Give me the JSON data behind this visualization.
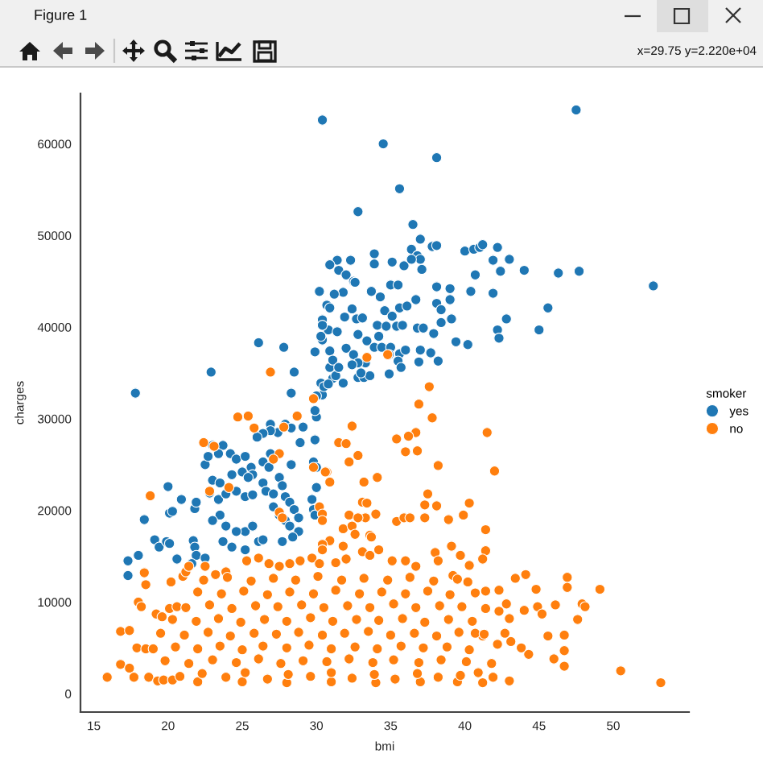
{
  "chart_data": {
    "type": "scatter",
    "xlabel": "bmi",
    "ylabel": "charges",
    "legend_title": "smoker",
    "legend": "right",
    "marker": "circle",
    "grid": false,
    "xlim": [
      14.1,
      55.1
    ],
    "ylim": [
      -2000,
      65500
    ],
    "xticks": [
      15,
      20,
      25,
      30,
      35,
      40,
      45,
      50
    ],
    "yticks": [
      0,
      10000,
      20000,
      30000,
      40000,
      50000,
      60000
    ],
    "annotations": [
      "Figure 1",
      "x=29.75 y=2.220e+04"
    ],
    "series": [
      {
        "name": "yes",
        "color": "#1f77b4",
        "x": [
          30.4,
          47.5,
          34.5,
          32.8,
          38.1,
          35.6,
          17.8,
          22.9,
          26.1,
          27.8,
          28.5,
          28.3,
          36.5,
          37.0,
          37.8,
          38.1,
          36.4,
          33.9,
          40.0,
          40.6,
          41.0,
          41.2,
          42.2,
          36.8,
          37.0,
          43.0,
          41.9,
          31.4,
          30.9,
          32.3,
          33.9,
          35.1,
          35.9,
          36.4,
          37.1,
          44.0,
          46.3,
          47.7,
          42.4,
          40.7,
          52.7,
          31.5,
          32.0,
          32.5,
          35.0,
          35.5,
          38.1,
          39.0,
          33.7,
          34.3,
          31.8,
          31.2,
          40.4,
          41.9,
          38.1,
          39.0,
          30.7,
          30.9,
          32.4,
          35.6,
          36.1,
          36.7,
          45.6,
          38.4,
          34.6,
          35.1,
          42.8,
          39.1,
          38.4,
          45.0,
          42.2,
          42.3,
          39.4,
          40.2,
          30.4,
          30.8,
          31.4,
          31.9,
          32.7,
          33.1,
          34.1,
          34.7,
          35.4,
          35.8,
          32.8,
          33.4,
          34.2,
          36.8,
          37.2,
          37.9,
          30.9,
          30.4,
          32.0,
          32.5,
          33.3,
          32.8,
          33.9,
          34.4,
          35.0,
          35.6,
          36.0,
          37.0,
          37.7,
          38.2,
          35.5,
          34.9,
          35.7,
          34.9,
          36.9,
          32.8,
          33.2,
          33.6,
          30.9,
          31.1,
          31.8,
          31.3,
          30.4,
          30.2,
          32.6,
          30.4,
          29.9,
          30.3,
          31.1,
          31.5,
          30.3,
          30.5,
          30.8,
          30.0,
          32.4,
          33.0,
          30.0,
          29.9,
          29.9,
          29.8,
          30.0,
          30.0,
          29.7,
          29.8,
          29.9,
          26.9,
          27.9,
          27.4,
          26.9,
          26.4,
          26.0,
          28.3,
          29.1,
          28.9,
          28.3,
          26.9,
          26.4,
          26.8,
          22.5,
          22.7,
          23.0,
          23.7,
          23.4,
          24.2,
          24.6,
          25.2,
          25.6,
          25.7,
          23.0,
          23.5,
          24.3,
          25.0,
          25.4,
          22.8,
          23.4,
          23.9,
          24.6,
          25.2,
          25.7,
          26.4,
          26.6,
          27.1,
          27.5,
          27.7,
          27.9,
          28.2,
          28.5,
          28.8,
          27.1,
          27.5,
          27.9,
          28.2,
          28.8,
          28.4,
          27.7,
          26.1,
          26.4,
          25.2,
          25.7,
          24.6,
          23.5,
          23.0,
          23.9,
          23.7,
          24.3,
          25.2,
          21.7,
          21.8,
          21.9,
          21.6,
          22.5,
          20.0,
          20.1,
          20.3,
          20.9,
          18.4,
          19.1,
          19.4,
          19.9,
          20.1,
          20.6,
          18.0,
          17.3,
          17.3,
          21.8,
          21.9
        ],
        "values": [
          62600,
          63700,
          60000,
          52600,
          58500,
          55100,
          32800,
          35100,
          38300,
          37800,
          35100,
          32800,
          51200,
          49600,
          48800,
          48900,
          48500,
          48000,
          48300,
          48500,
          48700,
          49000,
          48700,
          47800,
          47400,
          47400,
          47300,
          47300,
          46800,
          47300,
          46900,
          47100,
          46700,
          47400,
          46300,
          46200,
          45900,
          46100,
          46100,
          45700,
          44500,
          46200,
          45700,
          45000,
          44600,
          44600,
          44400,
          44200,
          43900,
          43300,
          43800,
          43600,
          43900,
          43700,
          42600,
          43000,
          42400,
          42100,
          42000,
          42100,
          42300,
          43000,
          42100,
          41900,
          41800,
          41200,
          40900,
          40900,
          40500,
          39700,
          39700,
          38800,
          38400,
          38100,
          40800,
          39700,
          39500,
          41100,
          40900,
          41000,
          40200,
          40100,
          40100,
          40200,
          39200,
          38500,
          39000,
          39900,
          39900,
          39300,
          37400,
          38600,
          37700,
          37000,
          36100,
          36100,
          37800,
          37800,
          37800,
          37100,
          37500,
          37500,
          37200,
          36300,
          36300,
          37000,
          35600,
          34900,
          36200,
          34500,
          34500,
          34700,
          35600,
          34400,
          33900,
          34700,
          32600,
          43900,
          44900,
          40200,
          37300,
          39000,
          36400,
          35600,
          33900,
          33500,
          33800,
          30200,
          35900,
          35000,
          32500,
          30900,
          27700,
          25300,
          24700,
          22500,
          21200,
          20100,
          19500,
          29400,
          29400,
          28500,
          28700,
          28400,
          28000,
          29000,
          29100,
          27400,
          25000,
          26200,
          25300,
          24700,
          25000,
          25900,
          27100,
          27100,
          26200,
          26200,
          25600,
          25900,
          24700,
          23900,
          23300,
          23000,
          23900,
          24200,
          23600,
          21900,
          21200,
          21800,
          22100,
          21500,
          21700,
          23000,
          22100,
          21800,
          23600,
          22700,
          21500,
          20900,
          20100,
          19200,
          20400,
          19500,
          18900,
          18300,
          17700,
          17100,
          16600,
          16600,
          16800,
          17700,
          18300,
          17700,
          19500,
          18900,
          18300,
          16600,
          16000,
          15700,
          16700,
          16000,
          15100,
          14200,
          14800,
          22600,
          19700,
          19900,
          21200,
          19000,
          16800,
          16000,
          16600,
          16400,
          14700,
          15100,
          14500,
          12900,
          20200,
          20900
        ]
      },
      {
        "name": "no",
        "color": "#ff7f0e",
        "x": [
          26.9,
          33.4,
          34.8,
          29.8,
          24.7,
          25.4,
          28.7,
          25.8,
          27.8,
          32.4,
          37.6,
          36.9,
          37.8,
          41.5,
          36.7,
          36.2,
          35.4,
          31.5,
          32.0,
          32.8,
          32.2,
          36.0,
          36.8,
          38.2,
          42.0,
          30.7,
          30.9,
          33.2,
          34.1,
          37.5,
          37.3,
          38.1,
          40.3,
          33.1,
          33.4,
          34.0,
          33.3,
          35.4,
          35.9,
          36.3,
          37.3,
          39.9,
          38.9,
          31.8,
          32.4,
          33.6,
          41.4,
          30.9,
          30.4,
          31.8,
          39.1,
          39.7,
          41.4,
          33.1,
          22.4,
          23.1,
          27.5,
          27.1,
          29.8,
          30.6,
          18.8,
          22.8,
          24.1,
          27.5,
          27.7,
          30.2,
          30.4,
          30.4,
          32.2,
          32.8,
          30.4,
          32.6,
          33.7,
          33.6,
          34.2,
          18.4,
          18.5,
          18.0,
          18.2,
          16.8,
          17.4,
          15.9,
          16.8,
          17.4,
          17.7,
          18.7,
          17.9,
          18.5,
          19.0,
          19.2,
          19.6,
          20.1,
          20.6,
          20.2,
          21.0,
          21.2,
          21.4,
          22.5,
          23.2,
          23.9,
          25.3,
          26.1,
          26.8,
          27.5,
          28.2,
          28.9,
          29.7,
          30.2,
          31.3,
          32.0,
          19.3,
          19.7,
          20.3,
          35.1,
          36.0,
          36.7,
          38.0,
          38.2,
          39.2,
          40.3,
          41.2,
          43.4,
          44.1,
          46.9,
          46.9,
          49.1,
          44.8,
          47.9,
          48.1,
          47.6,
          46.1,
          44.9,
          45.2,
          44.0,
          42.8,
          45.6,
          46.7,
          44.3,
          46.0,
          46.7,
          46.7,
          50.5,
          53.2,
          41.2,
          41.9,
          43.0,
          42.7,
          43.1,
          42.2,
          41.2,
          40.7,
          42.3,
          42.3,
          40.2,
          41.4,
          22.0,
          25.0,
          28.0,
          31.0,
          34.0,
          37.0,
          39.5,
          20.8,
          22.3,
          23.9,
          25.2,
          26.7,
          28.1,
          29.6,
          31.0,
          32.4,
          33.9,
          35.3,
          36.8,
          38.2,
          39.7,
          40.9,
          19.8,
          21.4,
          23.0,
          24.6,
          26.1,
          27.6,
          29.1,
          30.7,
          32.2,
          33.8,
          35.2,
          36.9,
          38.4,
          40.1,
          41.8,
          20.5,
          22.0,
          23.5,
          25.0,
          26.4,
          28.0,
          29.5,
          31.0,
          32.6,
          34.1,
          35.7,
          37.2,
          38.8,
          40.3,
          43.8,
          19.5,
          21.1,
          22.7,
          24.2,
          25.8,
          27.3,
          28.8,
          30.4,
          31.9,
          33.5,
          35.0,
          36.6,
          38.1,
          39.6,
          41.3,
          20.3,
          21.9,
          23.4,
          24.9,
          26.5,
          28.0,
          29.6,
          31.1,
          32.7,
          34.2,
          35.8,
          37.3,
          38.9,
          40.5,
          43.0,
          21.2,
          22.8,
          24.3,
          25.9,
          27.4,
          29.0,
          30.5,
          32.1,
          33.6,
          35.2,
          36.7,
          38.3,
          39.8,
          41.4,
          22.0,
          23.6,
          25.1,
          26.7,
          28.2,
          29.8,
          31.3,
          32.9,
          34.4,
          36.0,
          37.5,
          39.0,
          40.7,
          22.4,
          24.0,
          25.6,
          27.1,
          28.6,
          30.1,
          31.7,
          33.2,
          34.8,
          36.3,
          37.9,
          39.5
        ],
        "values": [
          35100,
          36700,
          37000,
          32200,
          30200,
          30300,
          30300,
          29000,
          29100,
          29200,
          33500,
          31600,
          30100,
          28500,
          28500,
          28100,
          27800,
          27400,
          27300,
          26000,
          25300,
          26400,
          26500,
          24900,
          24300,
          24200,
          23100,
          23100,
          23600,
          21800,
          20600,
          20500,
          20800,
          20900,
          20800,
          19600,
          19200,
          18800,
          19200,
          19200,
          19200,
          19500,
          19000,
          18000,
          18300,
          17300,
          17900,
          16700,
          16300,
          16100,
          16100,
          15100,
          15600,
          15500,
          27400,
          27000,
          26200,
          25600,
          24700,
          24200,
          21600,
          22100,
          22500,
          19800,
          19200,
          20400,
          19600,
          18900,
          19500,
          19200,
          15700,
          17400,
          17100,
          15100,
          15700,
          13200,
          11900,
          10000,
          9500,
          6800,
          6900,
          1800,
          3200,
          2800,
          1800,
          1800,
          5000,
          4900,
          4900,
          8700,
          8400,
          9300,
          9500,
          12200,
          12800,
          13300,
          13900,
          13900,
          13000,
          13300,
          14500,
          14800,
          14200,
          13900,
          14200,
          14500,
          14800,
          14200,
          14300,
          14700,
          1400,
          1500,
          1500,
          14500,
          14500,
          13900,
          15400,
          14500,
          12900,
          14000,
          14700,
          12600,
          13000,
          12700,
          11600,
          11400,
          11400,
          9800,
          9500,
          8100,
          9700,
          9500,
          8700,
          9100,
          9800,
          6300,
          6400,
          4300,
          3800,
          4700,
          3000,
          2500,
          1200,
          1200,
          1800,
          1400,
          6600,
          5700,
          5400,
          6300,
          6600,
          9000,
          11300,
          12200,
          11200,
          1300,
          1300,
          1200,
          1300,
          1200,
          1300,
          1300,
          1900,
          2200,
          1800,
          2300,
          1600,
          2100,
          1900,
          2300,
          1700,
          2100,
          1600,
          2200,
          1800,
          2000,
          2300,
          3600,
          3300,
          3700,
          3400,
          3800,
          3300,
          3600,
          3500,
          3800,
          3400,
          3700,
          3400,
          3700,
          3500,
          3300,
          5100,
          4900,
          5200,
          4800,
          5200,
          5000,
          5300,
          4900,
          5100,
          4900,
          5200,
          5000,
          5100,
          4800,
          5000,
          6600,
          6400,
          6700,
          6300,
          6600,
          6500,
          6700,
          6400,
          6600,
          6800,
          6400,
          6600,
          6300,
          6700,
          6500,
          8100,
          7900,
          8200,
          7800,
          8100,
          7900,
          8300,
          7900,
          8100,
          8000,
          8200,
          7800,
          8100,
          7900,
          8200,
          9400,
          9700,
          9300,
          9600,
          9500,
          9700,
          9400,
          9600,
          9400,
          9800,
          9400,
          9600,
          9500,
          9300,
          11100,
          10900,
          11200,
          10800,
          11100,
          10900,
          11300,
          10900,
          11100,
          10900,
          11200,
          10800,
          11000,
          12400,
          12700,
          12300,
          12600,
          12400,
          12800,
          12400,
          12600,
          12400,
          12700,
          12300,
          12500
        ]
      }
    ]
  }
}
